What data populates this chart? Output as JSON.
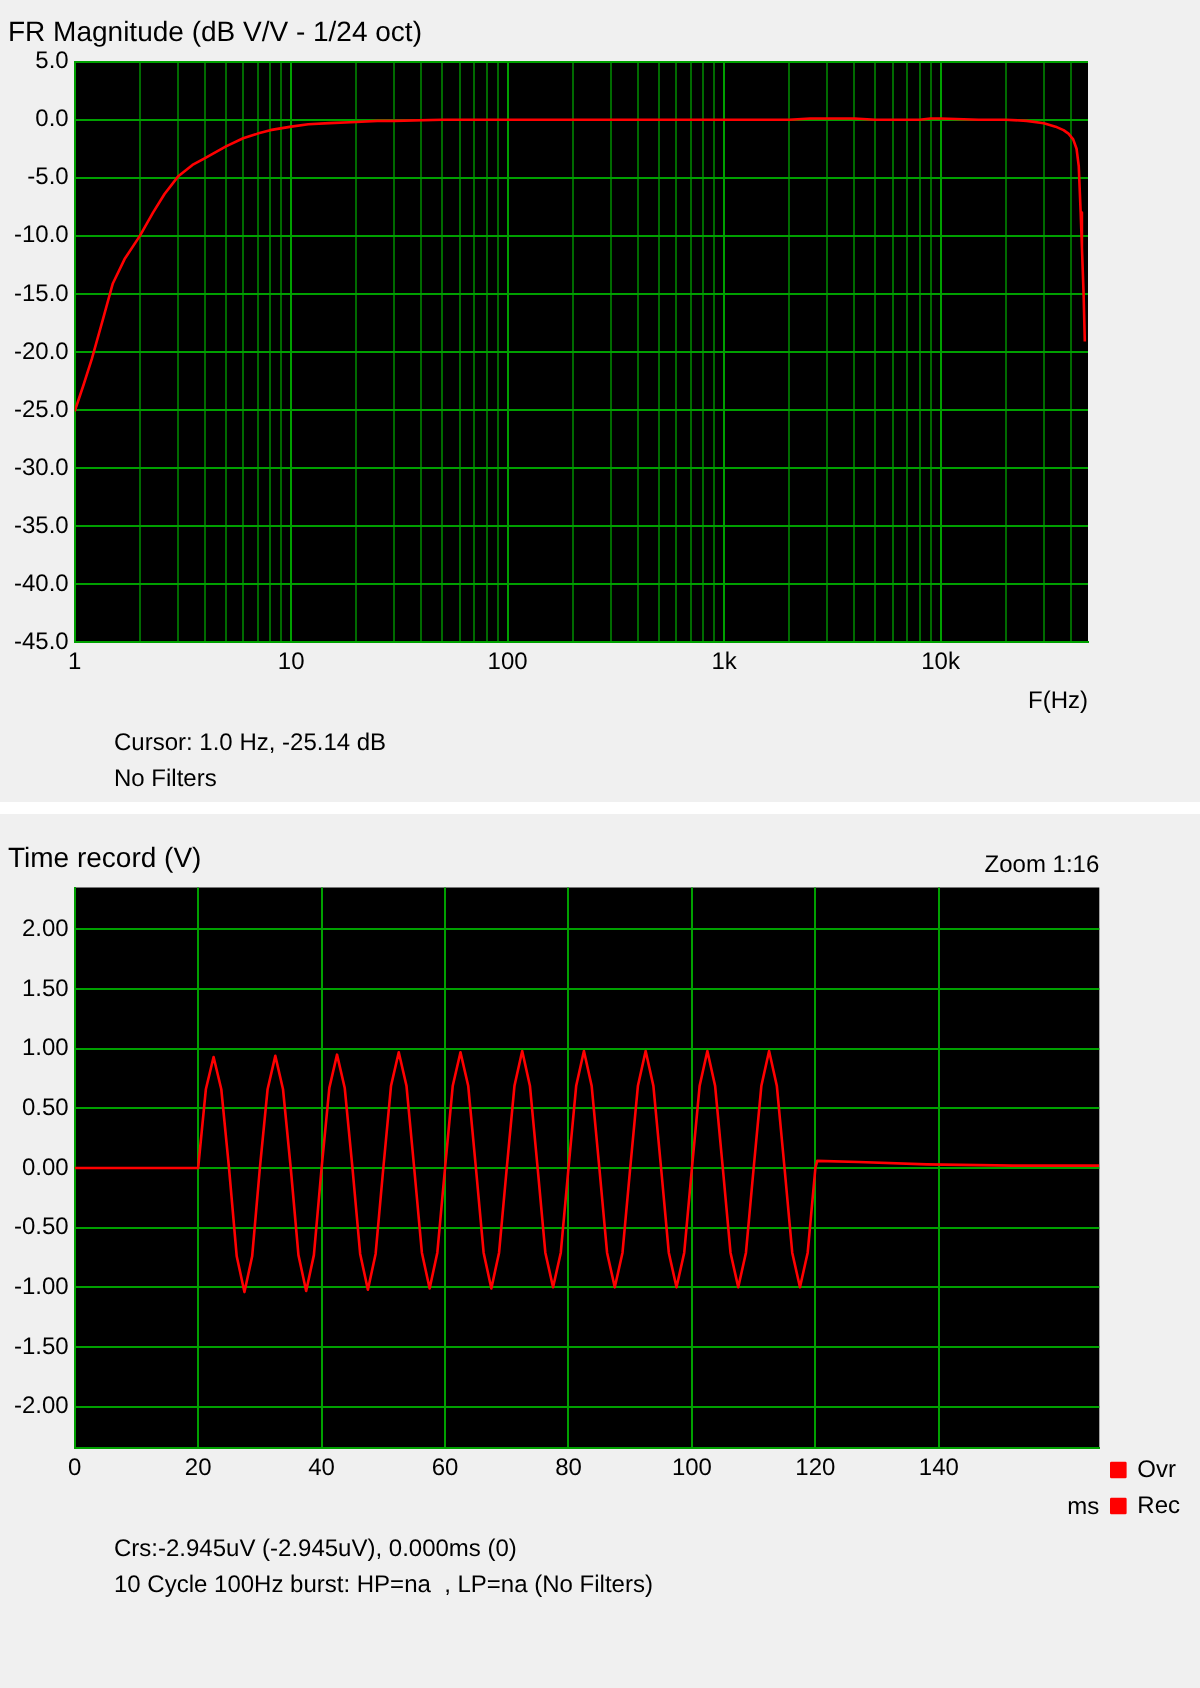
{
  "chart_data": [
    {
      "type": "line",
      "title": "FR Magnitude (dB V/V - 1/24 oct)",
      "xlabel": "F(Hz)",
      "log": "x",
      "grid": true,
      "xlim": [
        1,
        48000
      ],
      "xticks": [
        {
          "value": 1,
          "label": "1"
        },
        {
          "value": 2,
          "label": null
        },
        {
          "value": 3,
          "label": null
        },
        {
          "value": 4,
          "label": null
        },
        {
          "value": 5,
          "label": null
        },
        {
          "value": 6,
          "label": null
        },
        {
          "value": 7,
          "label": null
        },
        {
          "value": 8,
          "label": null
        },
        {
          "value": 9,
          "label": null
        },
        {
          "value": 10,
          "label": "10"
        },
        {
          "value": 20,
          "label": null
        },
        {
          "value": 30,
          "label": null
        },
        {
          "value": 40,
          "label": null
        },
        {
          "value": 50,
          "label": null
        },
        {
          "value": 60,
          "label": null
        },
        {
          "value": 70,
          "label": null
        },
        {
          "value": 80,
          "label": null
        },
        {
          "value": 90,
          "label": null
        },
        {
          "value": 100,
          "label": "100"
        },
        {
          "value": 200,
          "label": null
        },
        {
          "value": 300,
          "label": null
        },
        {
          "value": 400,
          "label": null
        },
        {
          "value": 500,
          "label": null
        },
        {
          "value": 600,
          "label": null
        },
        {
          "value": 700,
          "label": null
        },
        {
          "value": 800,
          "label": null
        },
        {
          "value": 900,
          "label": null
        },
        {
          "value": 1000,
          "label": "1k"
        },
        {
          "value": 2000,
          "label": null
        },
        {
          "value": 3000,
          "label": null
        },
        {
          "value": 4000,
          "label": null
        },
        {
          "value": 5000,
          "label": null
        },
        {
          "value": 6000,
          "label": null
        },
        {
          "value": 7000,
          "label": null
        },
        {
          "value": 8000,
          "label": null
        },
        {
          "value": 9000,
          "label": null
        },
        {
          "value": 10000,
          "label": "10k"
        },
        {
          "value": 20000,
          "label": null
        },
        {
          "value": 30000,
          "label": null
        },
        {
          "value": 40000,
          "label": null
        }
      ],
      "ylim": [
        -45,
        5
      ],
      "yticks": [
        {
          "value": 5,
          "label": "5.0"
        },
        {
          "value": 0,
          "label": "0.0"
        },
        {
          "value": -5,
          "label": "-5.0"
        },
        {
          "value": -10,
          "label": "-10.0"
        },
        {
          "value": -15,
          "label": "-15.0"
        },
        {
          "value": -20,
          "label": "-20.0"
        },
        {
          "value": -25,
          "label": "-25.0"
        },
        {
          "value": -30,
          "label": "-30.0"
        },
        {
          "value": -35,
          "label": "-35.0"
        },
        {
          "value": -40,
          "label": "-40.0"
        },
        {
          "value": -45,
          "label": "-45.0"
        }
      ],
      "x": [
        1,
        1.1,
        1.2,
        1.35,
        1.5,
        1.7,
        2,
        2.3,
        2.6,
        3,
        3.5,
        4,
        5,
        6,
        7,
        8,
        10,
        12,
        15,
        20,
        25,
        30,
        50,
        100,
        300,
        1000,
        2000,
        2500,
        3000,
        4000,
        5000,
        8000,
        9000,
        10000,
        15000,
        20000,
        25000,
        30000,
        34000,
        37000,
        39000,
        41000,
        42500,
        43500,
        44400,
        45000,
        45800,
        46400
      ],
      "series": [
        {
          "color": "#ff0000",
          "values": [
            -25.1,
            -22.8,
            -20.6,
            -17.2,
            -14.1,
            -12.0,
            -10.0,
            -8.0,
            -6.4,
            -4.9,
            -3.9,
            -3.3,
            -2.3,
            -1.6,
            -1.2,
            -0.9,
            -0.6,
            -0.4,
            -0.3,
            -0.2,
            -0.1,
            -0.1,
            0,
            0,
            0,
            0,
            0,
            0.1,
            0.1,
            0.1,
            0,
            0,
            0.1,
            0.1,
            0,
            0,
            -0.1,
            -0.3,
            -0.6,
            -0.9,
            -1.2,
            -1.7,
            -2.5,
            -4.0,
            -8.0,
            -11.0,
            -15.0,
            -19.1
          ]
        }
      ],
      "annotations": [
        "Cursor: 1.0 Hz, -25.14 dB",
        "No Filters"
      ]
    },
    {
      "type": "line",
      "title": "Time record (V)",
      "subtitle": "Zoom 1:16",
      "xlabel": "ms",
      "grid": true,
      "legend": "bottom right",
      "xlim": [
        0,
        166
      ],
      "xticks": [
        0,
        20,
        40,
        60,
        80,
        100,
        120,
        140
      ],
      "ylim": [
        -2.35,
        2.35
      ],
      "yticks": [
        {
          "value": 2,
          "label": "2.00"
        },
        {
          "value": 1.5,
          "label": "1.50"
        },
        {
          "value": 1,
          "label": "1.00"
        },
        {
          "value": 0.5,
          "label": "0.50"
        },
        {
          "value": 0,
          "label": "0.00"
        },
        {
          "value": -0.5,
          "label": "-0.50"
        },
        {
          "value": -1,
          "label": "-1.00"
        },
        {
          "value": -1.5,
          "label": "-1.50"
        },
        {
          "value": -2,
          "label": "-2.00"
        }
      ],
      "x": [
        0,
        20,
        21.25,
        22.5,
        23.75,
        25,
        26.25,
        27.5,
        28.75,
        30,
        31.25,
        32.5,
        33.75,
        35,
        36.25,
        37.5,
        38.75,
        40,
        41.25,
        42.5,
        43.75,
        45,
        46.25,
        47.5,
        48.75,
        50,
        51.25,
        52.5,
        53.75,
        55,
        56.25,
        57.5,
        58.75,
        60,
        61.25,
        62.5,
        63.75,
        65,
        66.25,
        67.5,
        68.75,
        70,
        71.25,
        72.5,
        73.75,
        75,
        76.25,
        77.5,
        78.75,
        80,
        81.25,
        82.5,
        83.75,
        85,
        86.25,
        87.5,
        88.75,
        90,
        91.25,
        92.5,
        93.75,
        95,
        96.25,
        97.5,
        98.75,
        100,
        101.25,
        102.5,
        103.75,
        105,
        106.25,
        107.5,
        108.75,
        110,
        111.25,
        112.5,
        113.75,
        115,
        116.25,
        117.5,
        118.75,
        120,
        120.3,
        127,
        138,
        152,
        166
      ],
      "series": [
        {
          "name": "Ovr",
          "color": "#ff0000",
          "values": [
            null,
            null,
            null,
            null,
            null,
            null,
            null,
            null,
            null,
            null,
            null,
            null,
            null,
            null,
            null,
            null,
            null,
            null,
            null,
            null,
            null,
            null,
            null,
            null,
            null,
            null,
            null,
            null,
            null,
            null,
            null,
            null,
            null,
            null,
            null,
            null,
            null,
            null,
            null,
            null,
            null,
            null,
            null,
            null,
            null,
            null,
            null,
            null,
            null,
            null,
            null,
            null,
            null,
            null,
            null,
            null,
            null,
            null,
            null,
            null,
            null,
            null,
            null,
            null,
            null,
            null,
            null,
            null,
            null,
            null,
            null,
            null,
            null,
            null,
            null,
            null,
            null,
            null,
            null,
            null,
            null,
            null,
            null,
            null,
            null,
            null,
            null
          ]
        },
        {
          "name": "Rec",
          "color": "#ff0000",
          "values": [
            0,
            0,
            0.66,
            0.93,
            0.66,
            0,
            -0.74,
            -1.04,
            -0.74,
            0,
            0.66,
            0.94,
            0.66,
            0,
            -0.73,
            -1.03,
            -0.73,
            0,
            0.67,
            0.95,
            0.67,
            0,
            -0.72,
            -1.02,
            -0.72,
            0,
            0.69,
            0.97,
            0.69,
            0,
            -0.71,
            -1.01,
            -0.71,
            0,
            0.69,
            0.97,
            0.69,
            0,
            -0.71,
            -1.01,
            -0.71,
            0,
            0.69,
            0.98,
            0.69,
            0,
            -0.71,
            -1.0,
            -0.71,
            0,
            0.69,
            0.98,
            0.69,
            0,
            -0.71,
            -1.0,
            -0.71,
            0,
            0.69,
            0.98,
            0.69,
            0,
            -0.71,
            -1.0,
            -0.71,
            0,
            0.69,
            0.98,
            0.69,
            0,
            -0.71,
            -1.0,
            -0.71,
            0,
            0.69,
            0.98,
            0.69,
            0,
            -0.71,
            -1.0,
            -0.71,
            0,
            0.06,
            0.05,
            0.03,
            0.02,
            0.02
          ]
        }
      ],
      "annotations": [
        "Crs:-2.945uV (-2.945uV), 0.000ms (0)",
        "10 Cycle 100Hz burst: HP=na  , LP=na (No Filters)"
      ]
    }
  ]
}
